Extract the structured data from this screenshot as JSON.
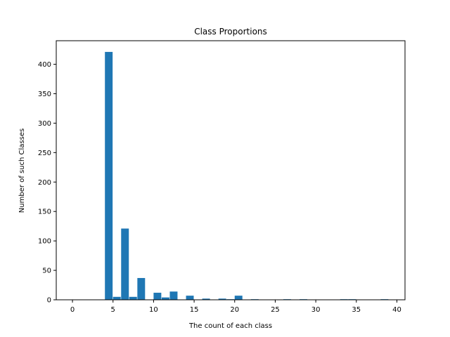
{
  "chart_data": {
    "type": "bar",
    "title": "Class Proportions",
    "xlabel": "The count of each class",
    "ylabel": "Number of such Classes",
    "xlim": [
      -2,
      41
    ],
    "ylim": [
      0,
      440
    ],
    "xticks": [
      0,
      5,
      10,
      15,
      20,
      25,
      30,
      35,
      40
    ],
    "yticks": [
      0,
      50,
      100,
      150,
      200,
      250,
      300,
      350,
      400
    ],
    "grid": false,
    "color": "#1f77b4",
    "bin_width": 0.95,
    "bins": [
      {
        "start": 4.0,
        "value": 421
      },
      {
        "start": 5.0,
        "value": 5
      },
      {
        "start": 6.0,
        "value": 121
      },
      {
        "start": 7.0,
        "value": 5
      },
      {
        "start": 8.0,
        "value": 37
      },
      {
        "start": 9.0,
        "value": 0
      },
      {
        "start": 10.0,
        "value": 12
      },
      {
        "start": 11.0,
        "value": 4
      },
      {
        "start": 12.0,
        "value": 14
      },
      {
        "start": 13.0,
        "value": 0
      },
      {
        "start": 14.0,
        "value": 7
      },
      {
        "start": 15.0,
        "value": 0
      },
      {
        "start": 16.0,
        "value": 2
      },
      {
        "start": 17.0,
        "value": 0
      },
      {
        "start": 18.0,
        "value": 2
      },
      {
        "start": 19.0,
        "value": 1
      },
      {
        "start": 20.0,
        "value": 7
      },
      {
        "start": 21.0,
        "value": 0
      },
      {
        "start": 22.0,
        "value": 1
      },
      {
        "start": 23.0,
        "value": 0
      },
      {
        "start": 24.0,
        "value": 0
      },
      {
        "start": 25.0,
        "value": 0
      },
      {
        "start": 26.0,
        "value": 1
      },
      {
        "start": 27.0,
        "value": 0
      },
      {
        "start": 28.0,
        "value": 1
      },
      {
        "start": 29.0,
        "value": 0
      },
      {
        "start": 30.0,
        "value": 0
      },
      {
        "start": 31.0,
        "value": 0
      },
      {
        "start": 32.0,
        "value": 0
      },
      {
        "start": 33.0,
        "value": 1
      },
      {
        "start": 34.0,
        "value": 1
      },
      {
        "start": 35.0,
        "value": 0
      },
      {
        "start": 36.0,
        "value": 0
      },
      {
        "start": 37.0,
        "value": 0
      },
      {
        "start": 38.0,
        "value": 1
      }
    ]
  }
}
